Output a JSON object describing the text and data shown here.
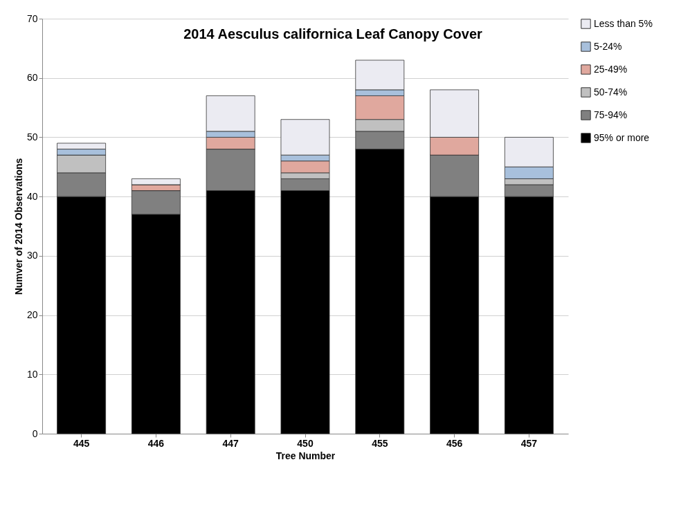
{
  "chart_data": {
    "type": "bar",
    "title": "2014 Aesculus californica Leaf Canopy Cover",
    "xlabel": "Tree Number",
    "ylabel": "Numver of 2014 Observations",
    "categories": [
      "445",
      "446",
      "447",
      "450",
      "455",
      "456",
      "457"
    ],
    "stacked": true,
    "ylim": [
      0,
      70
    ],
    "yticks": [
      0,
      10,
      20,
      30,
      40,
      50,
      60,
      70
    ],
    "grid": "y",
    "legend": "top right",
    "series": [
      {
        "name": "95% or more",
        "color": "#000000",
        "values": [
          40,
          37,
          41,
          41,
          48,
          40,
          40
        ]
      },
      {
        "name": "75-94%",
        "color": "#808080",
        "values": [
          4,
          4,
          7,
          2,
          3,
          7,
          2
        ]
      },
      {
        "name": "50-74%",
        "color": "#c0c0c0",
        "values": [
          3,
          0,
          0,
          1,
          2,
          0,
          1
        ]
      },
      {
        "name": "25-49%",
        "color": "#e0a89e",
        "values": [
          0,
          1,
          2,
          2,
          4,
          3,
          0
        ]
      },
      {
        "name": "5-24%",
        "color": "#a8c0dc",
        "values": [
          1,
          0,
          1,
          1,
          1,
          0,
          2
        ]
      },
      {
        "name": "Less than 5%",
        "color": "#ebebf2",
        "values": [
          1,
          1,
          6,
          6,
          5,
          8,
          5
        ]
      }
    ]
  }
}
